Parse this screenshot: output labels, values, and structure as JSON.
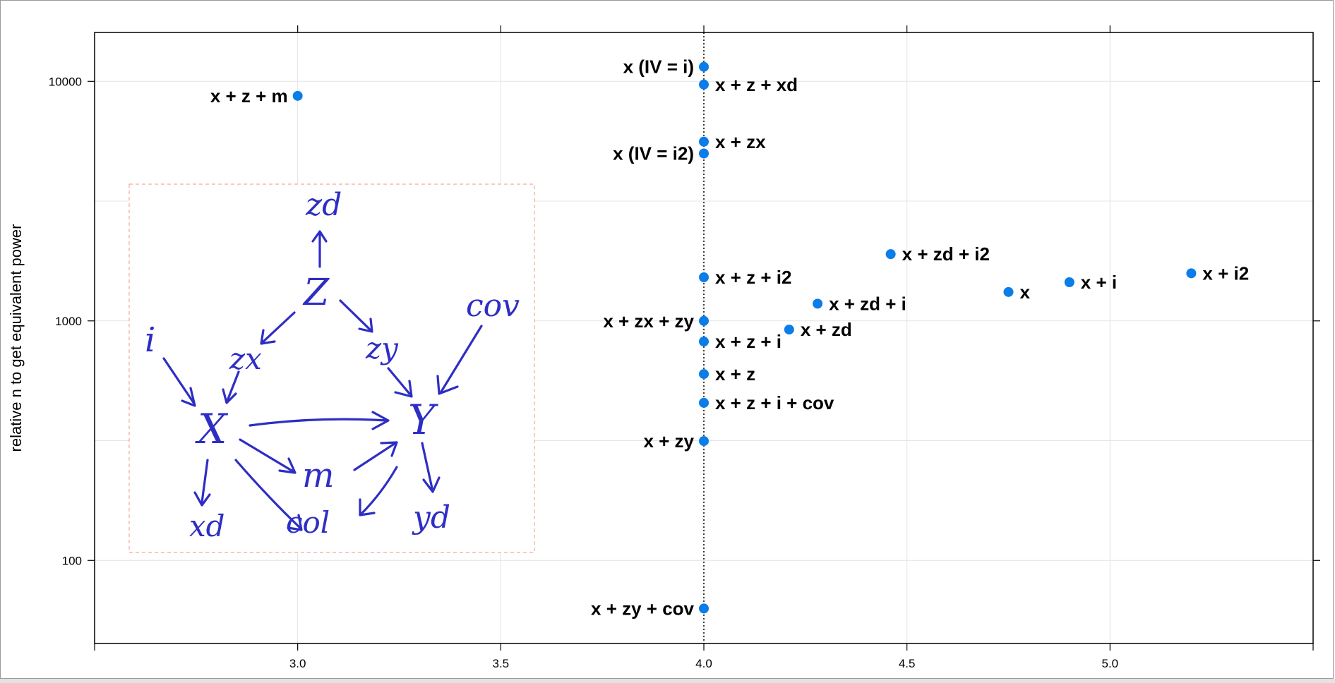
{
  "chart_data": {
    "type": "scatter",
    "title": "",
    "xlabel": "",
    "ylabel": "relative n to get equivalent power",
    "y_scale": "log",
    "xlim": [
      2.5,
      5.5
    ],
    "ylim": [
      45,
      16000
    ],
    "x_ticks": [
      3.0,
      3.5,
      4.0,
      4.5,
      5.0
    ],
    "x_tick_labels": [
      "3.0",
      "3.5",
      "4.0",
      "4.5",
      "5.0"
    ],
    "y_ticks": [
      100,
      1000,
      10000
    ],
    "y_tick_labels": [
      "100",
      "1000",
      "10000"
    ],
    "grid": true,
    "reference_line": {
      "x": 4.0,
      "style": "dotted"
    },
    "point_color": "#0a7de8",
    "points": [
      {
        "label": "x + z + m",
        "x": 3.0,
        "y": 8700,
        "label_side": "left"
      },
      {
        "label": "x (IV = i)",
        "x": 4.0,
        "y": 11500,
        "label_side": "left"
      },
      {
        "label": "x + z + xd",
        "x": 4.0,
        "y": 9700,
        "label_side": "right"
      },
      {
        "label": "x + zx",
        "x": 4.0,
        "y": 5600,
        "label_side": "right"
      },
      {
        "label": "x (IV = i2)",
        "x": 4.0,
        "y": 5000,
        "label_side": "left"
      },
      {
        "label": "x + z + i2",
        "x": 4.0,
        "y": 1520,
        "label_side": "right"
      },
      {
        "label": "x + zx + zy",
        "x": 4.0,
        "y": 1000,
        "label_side": "left"
      },
      {
        "label": "x + z + i",
        "x": 4.0,
        "y": 820,
        "label_side": "right"
      },
      {
        "label": "x + z",
        "x": 4.0,
        "y": 600,
        "label_side": "right"
      },
      {
        "label": "x + z + i + cov",
        "x": 4.0,
        "y": 455,
        "label_side": "right"
      },
      {
        "label": "x + zy",
        "x": 4.0,
        "y": 315,
        "label_side": "left"
      },
      {
        "label": "x + zy + cov",
        "x": 4.0,
        "y": 63,
        "label_side": "left"
      },
      {
        "label": "x + zd",
        "x": 4.21,
        "y": 920,
        "label_side": "right"
      },
      {
        "label": "x + zd + i",
        "x": 4.28,
        "y": 1180,
        "label_side": "right"
      },
      {
        "label": "x + zd + i2",
        "x": 4.46,
        "y": 1900,
        "label_side": "right"
      },
      {
        "label": "x",
        "x": 4.75,
        "y": 1320,
        "label_side": "right"
      },
      {
        "label": "x + i",
        "x": 4.9,
        "y": 1450,
        "label_side": "right"
      },
      {
        "label": "x + i2",
        "x": 5.2,
        "y": 1580,
        "label_side": "right"
      }
    ]
  },
  "inset_diagram": {
    "nodes": [
      {
        "id": "zd",
        "label": "zd"
      },
      {
        "id": "Z",
        "label": "Z"
      },
      {
        "id": "i",
        "label": "i"
      },
      {
        "id": "zx",
        "label": "zx"
      },
      {
        "id": "zy",
        "label": "zy"
      },
      {
        "id": "cov",
        "label": "cov"
      },
      {
        "id": "X",
        "label": "X"
      },
      {
        "id": "Y",
        "label": "Y"
      },
      {
        "id": "m",
        "label": "m"
      },
      {
        "id": "xd",
        "label": "xd"
      },
      {
        "id": "col",
        "label": "col"
      },
      {
        "id": "yd",
        "label": "yd"
      }
    ]
  }
}
